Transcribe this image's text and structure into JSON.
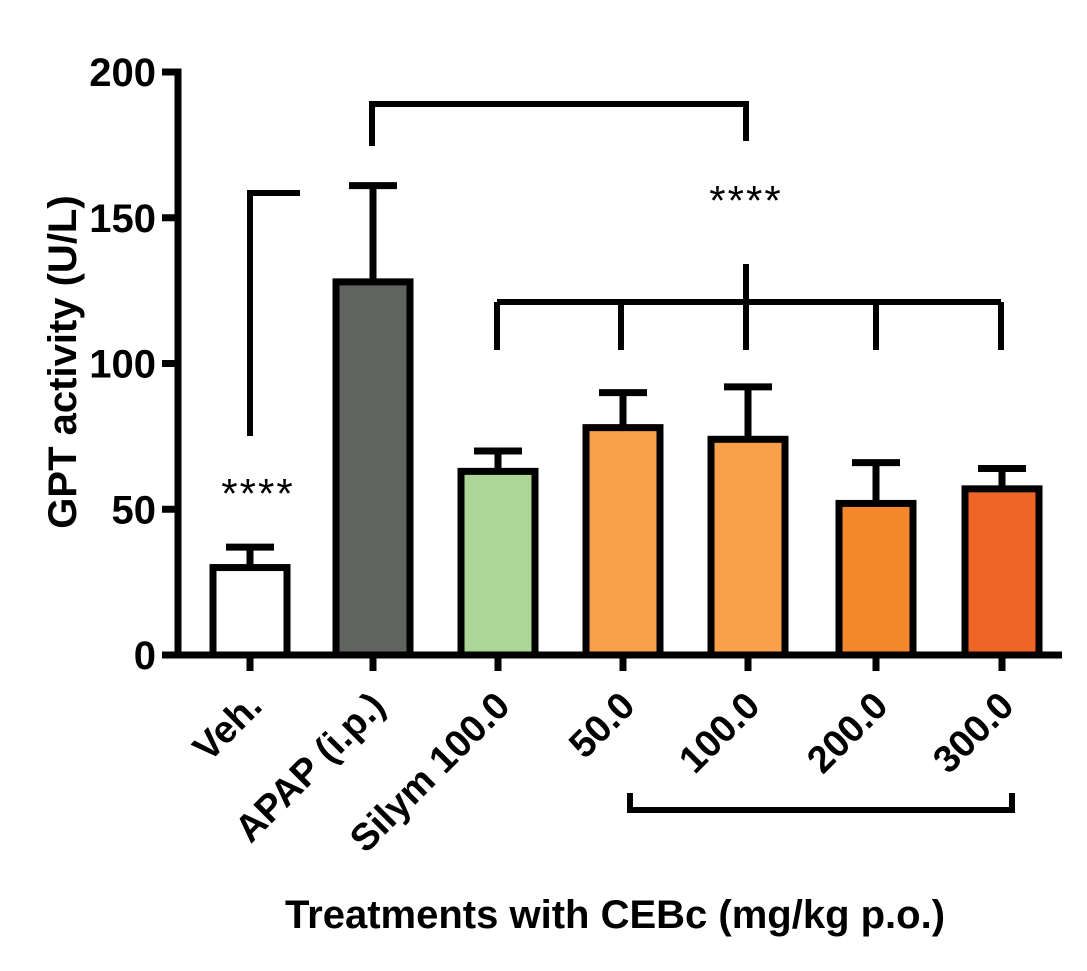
{
  "chart_data": {
    "type": "bar",
    "title": "",
    "xlabel": "Treatments with CEBc (mg/kg p.o.)",
    "ylabel": "GPT activity (U/L)",
    "ylim": [
      0,
      200
    ],
    "yticks": [
      0,
      50,
      100,
      150,
      200
    ],
    "categories": [
      "Veh.",
      "APAP (i.p.)",
      "Silym 100.0",
      "50.0",
      "100.0",
      "200.0",
      "300.0"
    ],
    "values": [
      30,
      128,
      63,
      78,
      74,
      52,
      57
    ],
    "errors": [
      7,
      33,
      7,
      12,
      18,
      14,
      7
    ],
    "colors": [
      "#ffffff",
      "#616361",
      "#acd597",
      "#f6a14a",
      "#f7a24a",
      "#f4862c",
      "#ef6427"
    ],
    "significance": [
      {
        "label": "****",
        "comparison": "Veh. vs APAP (i.p.)"
      },
      {
        "label": "****",
        "comparison": "APAP (i.p.) vs Silym 100.0, 50.0, 100.0, 200.0, 300.0"
      }
    ],
    "group_bracket": "CEBc doses: 50.0, 100.0, 200.0, 300.0"
  }
}
